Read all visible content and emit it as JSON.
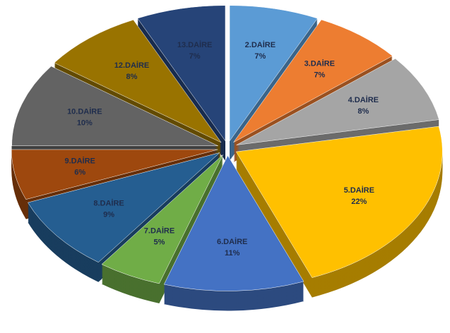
{
  "chart_data": {
    "type": "pie",
    "categories": [
      "2.DAİRE",
      "3.DAİRE",
      "4.DAİRE",
      "5.DAİRE",
      "6.DAİRE",
      "7.DAİRE",
      "8.DAİRE",
      "9.DAİRE",
      "10.DAİRE",
      "12.DAİRE",
      "13.DAİRE"
    ],
    "values": [
      7,
      7,
      8,
      22,
      11,
      5,
      9,
      6,
      10,
      8,
      7
    ],
    "value_labels": [
      "7%",
      "7%",
      "8%",
      "22%",
      "11%",
      "5%",
      "9%",
      "6%",
      "10%",
      "8%",
      "7%"
    ],
    "colors": [
      "#5b9bd5",
      "#ed7d31",
      "#a5a5a5",
      "#ffc000",
      "#4472c4",
      "#70ad47",
      "#255e91",
      "#9e480e",
      "#636363",
      "#997300",
      "#264478"
    ]
  }
}
